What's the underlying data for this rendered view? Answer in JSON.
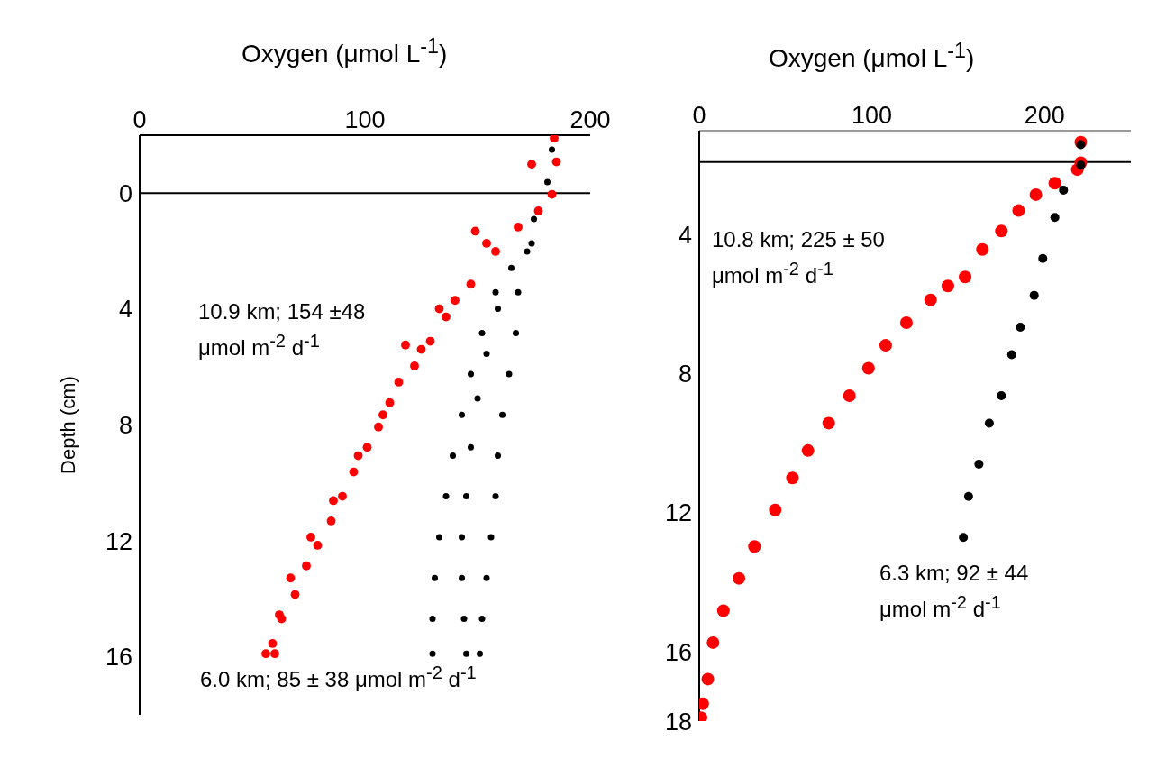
{
  "chart_data": [
    {
      "type": "scatter",
      "title": "Oxygen (μmol L$^{-1}$)",
      "ylabel": "Depth (cm)",
      "xlim": [
        0,
        200
      ],
      "xticks": [
        0,
        100,
        200
      ],
      "ylim": [
        18,
        -2
      ],
      "yticks": [
        0,
        4,
        8,
        12,
        16
      ],
      "marker": "circle",
      "ref_lines": [
        {
          "axis": "y",
          "value": 0,
          "color": "#000000"
        }
      ],
      "annotations": [
        "10.9 km; 154 ±48\nμmol m$^{-2}$ d$^{-1}$",
        "6.0 km; 85 ± 38 μmol m$^{-2}$ d$^{-1}$"
      ],
      "series": [
        {
          "color": "#ff0000",
          "x": [
            184,
            185,
            183,
            177,
            168,
            158,
            154,
            147,
            140,
            136,
            129,
            122,
            115,
            111,
            106,
            101,
            95,
            90,
            85,
            79,
            74,
            69,
            63,
            59,
            56,
            118,
            149,
            174,
            133,
            125,
            108,
            97,
            86,
            76,
            67,
            62,
            60
          ],
          "values": [
            -1.9,
            -1.08,
            0.04,
            0.61,
            1.17,
            2.01,
            1.73,
            3.14,
            3.7,
            4.27,
            5.11,
            5.96,
            6.52,
            7.23,
            8.07,
            8.77,
            9.62,
            10.46,
            11.31,
            12.15,
            12.86,
            13.85,
            14.69,
            15.54,
            15.89,
            5.24,
            1.31,
            -1.0,
            3.99,
            5.39,
            7.65,
            9.06,
            10.61,
            11.87,
            13.28,
            14.55,
            15.89
          ]
        },
        {
          "color": "#000000",
          "x": [
            183,
            181,
            175,
            172,
            168,
            167,
            164,
            161,
            159,
            158,
            156,
            154,
            152,
            151,
            174,
            165,
            158,
            152,
            147,
            143,
            139,
            136,
            133,
            131,
            130,
            130,
            159,
            154,
            150,
            147,
            145,
            143,
            143,
            144,
            145
          ],
          "values": [
            -1.5,
            -0.38,
            0.89,
            2.01,
            3.42,
            4.83,
            6.24,
            7.65,
            9.06,
            10.46,
            11.87,
            13.28,
            14.69,
            15.89,
            1.73,
            2.58,
            3.42,
            4.83,
            6.24,
            7.65,
            9.06,
            10.46,
            11.87,
            13.28,
            14.69,
            15.89,
            3.99,
            5.54,
            7.08,
            8.77,
            10.46,
            11.87,
            13.28,
            14.69,
            15.89
          ]
        }
      ]
    },
    {
      "type": "scatter",
      "title": "Oxygen (μmol L$^{-1}$)",
      "xlim": [
        0,
        250
      ],
      "xticks": [
        0,
        100,
        200
      ],
      "ylim": [
        18,
        1
      ],
      "yticks": [
        4,
        8,
        12,
        16,
        18
      ],
      "marker": "circle",
      "ref_lines": [
        {
          "axis": "y",
          "value": 1.9,
          "color": "#000000"
        }
      ],
      "annotations": [
        "10.8 km; 225 ± 50\nμmol m$^{-2}$ d$^{-1}$",
        "6.3 km; 92 ± 44\nμmol m$^{-2}$ d$^{-1}$"
      ],
      "series": [
        {
          "color": "#ff0000",
          "x": [
            221,
            221,
            219,
            206,
            195,
            185,
            175,
            164,
            154,
            144,
            134,
            120,
            108,
            98,
            87,
            75,
            63,
            54,
            44,
            32,
            23,
            14,
            8,
            5,
            2,
            1
          ],
          "values": [
            1.33,
            1.92,
            2.12,
            2.51,
            2.84,
            3.3,
            3.89,
            4.42,
            5.21,
            5.47,
            5.87,
            6.53,
            7.18,
            7.84,
            8.63,
            9.42,
            10.21,
            11.0,
            11.92,
            12.97,
            13.89,
            14.82,
            15.74,
            16.79,
            17.5,
            17.9
          ]
        },
        {
          "color": "#000000",
          "x": [
            221,
            221,
            211,
            206,
            199,
            194,
            186,
            181,
            175,
            168,
            162,
            156,
            153
          ],
          "values": [
            1.4,
            1.99,
            2.71,
            3.5,
            4.68,
            5.74,
            6.66,
            7.45,
            8.63,
            9.42,
            10.6,
            11.53,
            12.71
          ]
        }
      ]
    }
  ]
}
